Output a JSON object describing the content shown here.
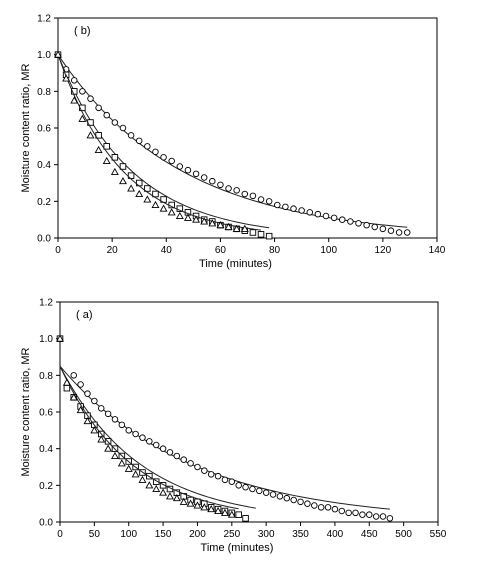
{
  "chart_data": [
    {
      "type": "scatter",
      "panel_label": "( b)",
      "xlabel": "Time (minutes)",
      "ylabel": "Moisture content ratio, MR",
      "xlim": [
        0,
        140
      ],
      "ylim": [
        0,
        1.2
      ],
      "x_ticks": [
        "0",
        "20",
        "40",
        "60",
        "80",
        "100",
        "120",
        "140"
      ],
      "y_ticks": [
        "0.0",
        "0.2",
        "0.4",
        "0.6",
        "0.8",
        "1.0",
        "1.2"
      ],
      "grid": false,
      "series": [
        {
          "marker": "circle",
          "x": [
            0,
            3,
            6,
            9,
            12,
            15,
            18,
            21,
            24,
            27,
            30,
            33,
            36,
            39,
            42,
            45,
            48,
            51,
            54,
            57,
            60,
            63,
            66,
            69,
            72,
            75,
            78,
            81,
            84,
            87,
            90,
            93,
            96,
            99,
            102,
            105,
            108,
            111,
            114,
            117,
            120,
            123,
            126,
            129
          ],
          "y": [
            1.0,
            0.92,
            0.86,
            0.8,
            0.76,
            0.71,
            0.67,
            0.63,
            0.6,
            0.56,
            0.53,
            0.5,
            0.47,
            0.44,
            0.42,
            0.39,
            0.37,
            0.35,
            0.33,
            0.31,
            0.29,
            0.27,
            0.26,
            0.24,
            0.23,
            0.21,
            0.2,
            0.18,
            0.17,
            0.16,
            0.15,
            0.14,
            0.13,
            0.12,
            0.11,
            0.1,
            0.09,
            0.08,
            0.07,
            0.06,
            0.05,
            0.04,
            0.03,
            0.03
          ],
          "fit": {
            "a": 1.0,
            "k": 0.022,
            "x_end": 129
          }
        },
        {
          "marker": "square",
          "x": [
            0,
            3,
            6,
            9,
            12,
            15,
            18,
            21,
            24,
            27,
            30,
            33,
            36,
            39,
            42,
            45,
            48,
            51,
            54,
            57,
            60,
            63,
            66,
            69,
            72,
            75,
            78
          ],
          "y": [
            1.0,
            0.89,
            0.8,
            0.71,
            0.63,
            0.56,
            0.5,
            0.44,
            0.39,
            0.34,
            0.3,
            0.27,
            0.24,
            0.21,
            0.18,
            0.16,
            0.14,
            0.12,
            0.1,
            0.09,
            0.07,
            0.06,
            0.05,
            0.04,
            0.03,
            0.02,
            0.01
          ],
          "fit": {
            "a": 1.0,
            "k": 0.037,
            "x_end": 78
          }
        },
        {
          "marker": "triangle",
          "x": [
            0,
            3,
            6,
            9,
            12,
            15,
            18,
            21,
            24,
            27,
            30,
            33,
            36,
            39,
            42,
            45,
            48,
            51,
            54,
            57,
            60,
            63,
            66,
            69
          ],
          "y": [
            1.0,
            0.87,
            0.75,
            0.65,
            0.56,
            0.48,
            0.42,
            0.36,
            0.31,
            0.27,
            0.24,
            0.21,
            0.18,
            0.16,
            0.14,
            0.12,
            0.11,
            0.1,
            0.09,
            0.08,
            0.07,
            0.06,
            0.05,
            0.05
          ],
          "fit": {
            "a": 1.0,
            "k": 0.042,
            "x_end": 75
          }
        }
      ]
    },
    {
      "type": "scatter",
      "panel_label": "( a)",
      "xlabel": "Time (minutes)",
      "ylabel": "Moisture content ratio, MR",
      "xlim": [
        0,
        550
      ],
      "ylim": [
        0,
        1.2
      ],
      "x_ticks": [
        "0",
        "50",
        "100",
        "150",
        "200",
        "250",
        "300",
        "350",
        "400",
        "450",
        "500",
        "550"
      ],
      "y_ticks": [
        "0.0",
        "0.2",
        "0.4",
        "0.6",
        "0.8",
        "1.0",
        "1.2"
      ],
      "grid": false,
      "series": [
        {
          "marker": "circle",
          "x": [
            0,
            20,
            30,
            40,
            50,
            60,
            70,
            80,
            90,
            100,
            110,
            120,
            130,
            140,
            150,
            160,
            170,
            180,
            190,
            200,
            210,
            220,
            230,
            240,
            250,
            260,
            270,
            280,
            290,
            300,
            310,
            320,
            330,
            340,
            350,
            360,
            370,
            380,
            390,
            400,
            410,
            420,
            430,
            440,
            450,
            460,
            470,
            480
          ],
          "y": [
            1.0,
            0.8,
            0.75,
            0.7,
            0.66,
            0.62,
            0.59,
            0.56,
            0.53,
            0.5,
            0.48,
            0.46,
            0.44,
            0.42,
            0.4,
            0.38,
            0.36,
            0.34,
            0.32,
            0.3,
            0.28,
            0.26,
            0.25,
            0.23,
            0.22,
            0.2,
            0.19,
            0.18,
            0.17,
            0.16,
            0.15,
            0.14,
            0.13,
            0.12,
            0.11,
            0.1,
            0.09,
            0.08,
            0.08,
            0.07,
            0.06,
            0.05,
            0.05,
            0.04,
            0.04,
            0.03,
            0.03,
            0.02
          ],
          "fit": {
            "a": 0.85,
            "k": 0.0052,
            "x_end": 480
          }
        },
        {
          "marker": "square",
          "x": [
            0,
            10,
            20,
            30,
            40,
            50,
            60,
            70,
            80,
            90,
            100,
            110,
            120,
            130,
            140,
            150,
            160,
            170,
            180,
            190,
            200,
            210,
            220,
            230,
            240,
            250,
            260,
            270
          ],
          "y": [
            1.0,
            0.73,
            0.68,
            0.63,
            0.58,
            0.53,
            0.48,
            0.44,
            0.4,
            0.36,
            0.33,
            0.3,
            0.27,
            0.25,
            0.22,
            0.2,
            0.18,
            0.16,
            0.14,
            0.12,
            0.11,
            0.1,
            0.08,
            0.07,
            0.06,
            0.05,
            0.04,
            0.02
          ],
          "fit": {
            "a": 0.85,
            "k": 0.0085,
            "x_end": 285
          }
        },
        {
          "marker": "triangle",
          "x": [
            0,
            10,
            20,
            30,
            40,
            50,
            60,
            70,
            80,
            90,
            100,
            110,
            120,
            130,
            140,
            150,
            160,
            170,
            180,
            190,
            200,
            210,
            220,
            230,
            240,
            250
          ],
          "y": [
            1.0,
            0.76,
            0.68,
            0.61,
            0.55,
            0.5,
            0.45,
            0.4,
            0.36,
            0.32,
            0.29,
            0.26,
            0.23,
            0.2,
            0.18,
            0.16,
            0.14,
            0.13,
            0.11,
            0.1,
            0.09,
            0.08,
            0.07,
            0.06,
            0.05,
            0.04
          ],
          "fit": {
            "a": 0.85,
            "k": 0.0095,
            "x_end": 260
          }
        }
      ]
    }
  ]
}
